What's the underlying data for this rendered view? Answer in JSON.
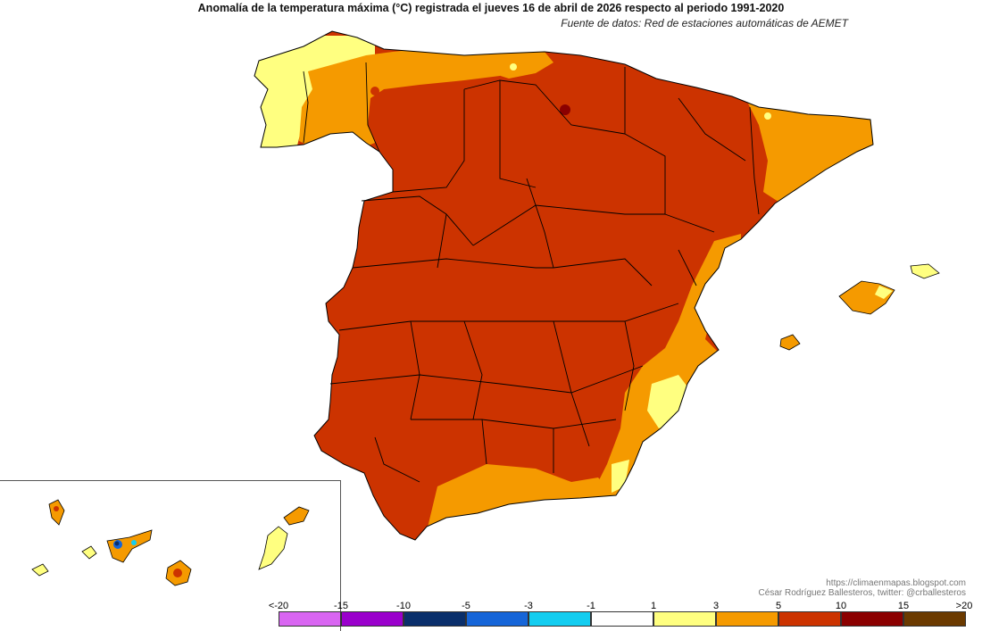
{
  "header": {
    "title": "Anomalía de la temperatura máxima (°C) registrada el jueves 16 de abril de 2026 respecto al periodo 1991-2020",
    "subtitle": "Fuente de datos: Red de estaciones automáticas de AEMET"
  },
  "credits": {
    "blog": "https://climaenmapas.blogspot.com",
    "author": "César Rodríguez Ballesteros, twitter: @crballesteros"
  },
  "legend": {
    "labels": [
      "<-20",
      "-15",
      "-10",
      "-5",
      "-3",
      "-1",
      "1",
      "3",
      "5",
      "10",
      "15",
      ">20"
    ],
    "colors": [
      "#d966f2",
      "#9a00cc",
      "#0a2f6b",
      "#1665d8",
      "#14cdf0",
      "#ffffff",
      "#ffff80",
      "#f59a00",
      "#cc3300",
      "#8b0000",
      "#6b3a00"
    ]
  },
  "palette": {
    "peninsula_main": "#cc3300",
    "warm_orange": "#f59a00",
    "mild_yellow": "#ffff80",
    "hot_dark": "#8b0000",
    "cool_cyan": "#14cdf0",
    "cool_blue": "#1665d8",
    "cold_navy": "#0a2f6b",
    "neutral": "#ffffff",
    "border": "#000000"
  }
}
